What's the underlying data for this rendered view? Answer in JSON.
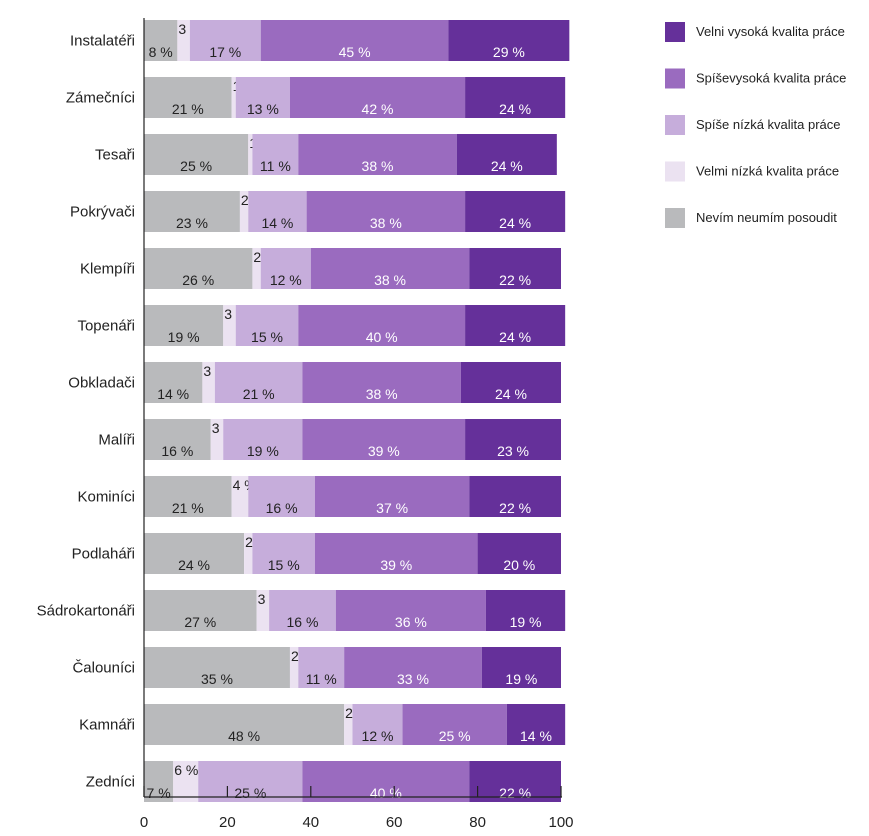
{
  "chart_data": {
    "type": "bar",
    "orientation": "horizontal",
    "stacked": true,
    "title": "",
    "xlabel": "",
    "ylabel": "",
    "xlim": [
      0,
      100
    ],
    "xticks": [
      0,
      20,
      40,
      60,
      80,
      100
    ],
    "grid": false,
    "legend_position": "top-right",
    "value_suffix": " %",
    "categories": [
      "Instalatéři",
      "Zámečníci",
      "Tesaři",
      "Pokrývači",
      "Klempíři",
      "Topenáři",
      "Obkladači",
      "Malíři",
      "Kominíci",
      "Podlaháři",
      "Sádrokartonáři",
      "Čalouníci",
      "Kamnáři",
      "Zedníci"
    ],
    "series": [
      {
        "name": "Nevím neumím posoudit",
        "color": "#b9babc",
        "label_color": "#222222",
        "values": [
          8,
          21,
          25,
          23,
          26,
          19,
          14,
          16,
          21,
          24,
          27,
          35,
          48,
          7
        ]
      },
      {
        "name": "Velmi nízká kvalita práce",
        "color": "#ebe2f1",
        "label_color": "#222222",
        "values": [
          3,
          1,
          1,
          2,
          2,
          3,
          3,
          3,
          4,
          2,
          3,
          2,
          2,
          6
        ]
      },
      {
        "name": "Spíše nízká kvalita práce",
        "color": "#c6addb",
        "label_color": "#222222",
        "values": [
          17,
          13,
          11,
          14,
          12,
          15,
          21,
          19,
          16,
          15,
          16,
          11,
          12,
          25
        ]
      },
      {
        "name": "Spíševysoká kvalita práce",
        "color": "#9a6bbf",
        "label_color": "#ffffff",
        "values": [
          45,
          42,
          38,
          38,
          38,
          40,
          38,
          39,
          37,
          39,
          36,
          33,
          25,
          40
        ]
      },
      {
        "name": "Velni vysoká kvalita práce",
        "color": "#65309a",
        "label_color": "#ffffff",
        "values": [
          29,
          24,
          24,
          24,
          22,
          24,
          24,
          23,
          22,
          20,
          19,
          19,
          14,
          22
        ]
      }
    ],
    "legend_order": [
      "Velni vysoká kvalita práce",
      "Spíševysoká kvalita práce",
      "Spíše nízká kvalita práce",
      "Velmi nízká kvalita práce",
      "Nevím neumím posoudit"
    ]
  }
}
